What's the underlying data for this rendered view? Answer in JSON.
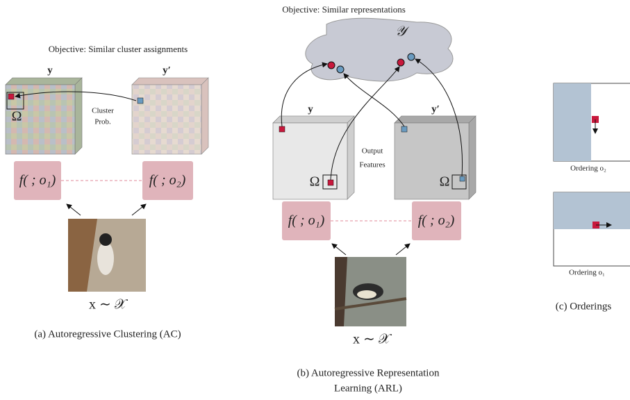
{
  "panel_a": {
    "objective": "Objective: Similar cluster assignments",
    "y": "y",
    "y_prime": "y′",
    "omega": "Ω",
    "cluster_prob": [
      "Cluster",
      "Prob."
    ],
    "f1": "f( ; o₁)",
    "f2": "f( ; o₂)",
    "input": "x ∼ 𝒳",
    "caption": "(a) Autoregressive Clustering (AC)"
  },
  "panel_b": {
    "objective": "Objective: Similar representations",
    "space": "𝒴",
    "y": "y",
    "y_prime": "y′",
    "output_features": [
      "Output",
      "Features"
    ],
    "omega_left": "Ω",
    "omega_right": "Ω",
    "f1": "f( ; o₁)",
    "f2": "f( ; o₂)",
    "input": "x ∼ 𝒳",
    "caption": [
      "(b) Autoregressive Representation",
      "Learning (ARL)"
    ]
  },
  "panel_c": {
    "ordering_top": "Ordering o₂",
    "ordering_bottom": "Ordering o₁",
    "caption": "(c) Orderings"
  }
}
